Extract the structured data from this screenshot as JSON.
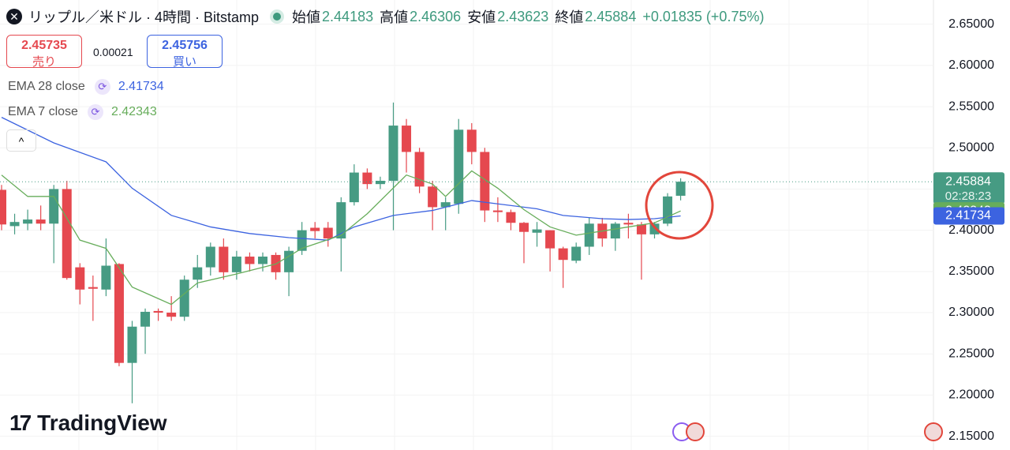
{
  "chart_data": {
    "type": "candlestick",
    "title": "リップル／米ドル · 4時間 · Bitstamp",
    "ohlc_labels": [
      "始値",
      "高値",
      "安値",
      "終値"
    ],
    "change": "+0.01835 (+0.75%)",
    "sell": {
      "price": 2.45735,
      "label": "売り"
    },
    "spread": 0.00021,
    "buy": {
      "price": 2.45756,
      "label": "買い"
    },
    "countdown": "02:28:23",
    "brand": "TradingView",
    "up_color": "#469b83",
    "down_color": "#e5484f",
    "open": [
      2.449,
      2.405,
      2.408,
      2.413,
      2.408,
      2.45,
      2.355,
      2.331,
      2.328,
      2.359,
      2.239,
      2.283,
      2.302,
      2.3,
      2.295,
      2.34,
      2.355,
      2.38,
      2.349,
      2.368,
      2.359,
      2.37,
      2.349,
      2.375,
      2.403,
      2.403,
      2.39,
      2.434,
      2.47,
      2.456,
      2.46,
      2.527,
      2.495,
      2.453,
      2.428,
      2.432,
      2.522,
      2.495,
      2.424,
      2.422,
      2.409,
      2.397,
      2.4,
      2.378,
      2.363,
      2.38,
      2.408,
      2.39,
      2.409,
      2.407,
      2.395,
      2.408,
      2.44183
    ],
    "high": [
      2.455,
      2.42,
      2.425,
      2.43,
      2.455,
      2.46,
      2.36,
      2.345,
      2.39,
      2.36,
      2.29,
      2.305,
      2.305,
      2.32,
      2.345,
      2.37,
      2.385,
      2.39,
      2.375,
      2.373,
      2.373,
      2.373,
      2.38,
      2.41,
      2.41,
      2.41,
      2.44,
      2.48,
      2.475,
      2.465,
      2.555,
      2.535,
      2.5,
      2.46,
      2.44,
      2.535,
      2.53,
      2.5,
      2.44,
      2.425,
      2.41,
      2.41,
      2.4,
      2.38,
      2.385,
      2.415,
      2.415,
      2.41,
      2.42,
      2.41,
      2.41,
      2.445,
      2.46306
    ],
    "low": [
      2.4,
      2.395,
      2.4,
      2.4,
      2.36,
      2.34,
      2.31,
      2.29,
      2.32,
      2.235,
      2.19,
      2.25,
      2.29,
      2.29,
      2.29,
      2.33,
      2.345,
      2.34,
      2.34,
      2.35,
      2.35,
      2.34,
      2.32,
      2.37,
      2.39,
      2.38,
      2.35,
      2.43,
      2.45,
      2.45,
      2.4,
      2.47,
      2.445,
      2.4,
      2.4,
      2.42,
      2.48,
      2.41,
      2.41,
      2.4,
      2.36,
      2.38,
      2.35,
      2.33,
      2.36,
      2.37,
      2.38,
      2.375,
      2.39,
      2.34,
      2.39,
      2.405,
      2.43623
    ],
    "close": [
      2.407,
      2.41,
      2.413,
      2.408,
      2.45,
      2.342,
      2.328,
      2.329,
      2.357,
      2.239,
      2.283,
      2.301,
      2.3,
      2.295,
      2.34,
      2.355,
      2.38,
      2.349,
      2.368,
      2.359,
      2.368,
      2.349,
      2.375,
      2.4,
      2.399,
      2.39,
      2.434,
      2.47,
      2.456,
      2.46,
      2.527,
      2.495,
      2.453,
      2.428,
      2.434,
      2.522,
      2.495,
      2.424,
      2.422,
      2.409,
      2.398,
      2.401,
      2.378,
      2.364,
      2.38,
      2.408,
      2.39,
      2.408,
      2.407,
      2.395,
      2.408,
      2.441,
      2.45884
    ],
    "series": [
      {
        "name": "EMA 28 close",
        "color": "#3c63e0",
        "x": [
          0,
          4,
          8,
          10,
          13,
          16,
          19,
          22,
          25,
          27,
          30,
          33,
          36,
          38,
          41,
          43,
          46,
          48,
          50,
          52
        ],
        "values": [
          2.537,
          2.506,
          2.483,
          2.451,
          2.418,
          2.404,
          2.396,
          2.391,
          2.388,
          2.404,
          2.418,
          2.424,
          2.436,
          2.432,
          2.426,
          2.418,
          2.414,
          2.413,
          2.414,
          2.41734
        ]
      },
      {
        "name": "EMA 7 close",
        "color": "#67ad5b",
        "x": [
          0,
          2,
          4,
          6,
          8,
          10,
          12,
          13,
          15,
          18,
          21,
          23,
          26,
          28,
          31,
          33,
          34,
          36,
          38,
          40,
          42,
          44,
          46,
          48,
          50,
          52
        ],
        "values": [
          2.467,
          2.441,
          2.441,
          2.388,
          2.378,
          2.331,
          2.317,
          2.31,
          2.336,
          2.347,
          2.359,
          2.378,
          2.394,
          2.42,
          2.467,
          2.456,
          2.441,
          2.472,
          2.451,
          2.425,
          2.404,
          2.394,
          2.399,
          2.404,
          2.409,
          2.42343
        ]
      }
    ],
    "ylim": [
      2.1333,
      2.6794
    ],
    "yticks": [
      {
        "value": 2.65,
        "label": "2.65000"
      },
      {
        "value": 2.6,
        "label": "2.60000"
      },
      {
        "value": 2.55,
        "label": "2.55000"
      },
      {
        "value": 2.5,
        "label": "2.50000"
      },
      {
        "value": 2.45,
        "label": "2.45000"
      },
      {
        "value": 2.4,
        "label": "2.40000"
      },
      {
        "value": 2.35,
        "label": "2.35000"
      },
      {
        "value": 2.3,
        "label": "2.30000"
      },
      {
        "value": 2.25,
        "label": "2.25000"
      },
      {
        "value": 2.2,
        "label": "2.20000"
      },
      {
        "value": 2.15,
        "label": "2.15000"
      }
    ],
    "grid": true
  }
}
